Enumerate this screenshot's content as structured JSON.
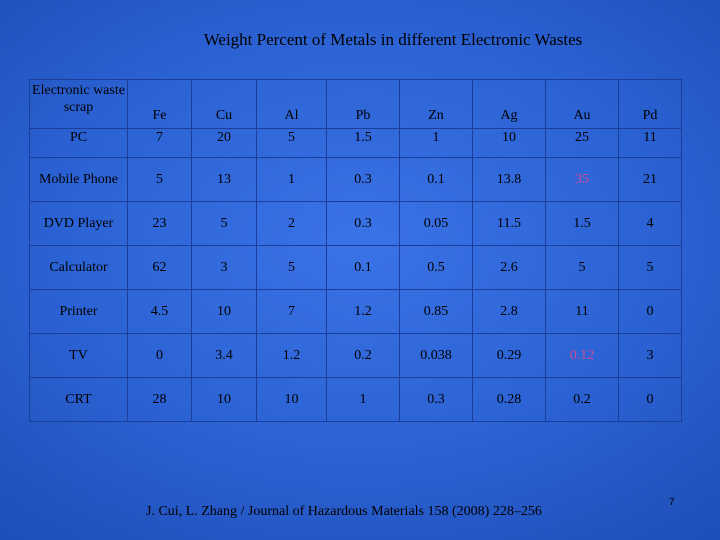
{
  "title": "Weight Percent of  Metals  in different Electronic Wastes",
  "table": {
    "corner_label": "Electronic waste scrap",
    "metals": [
      "Fe",
      "Cu",
      "Al",
      "Pb",
      "Zn",
      "Ag",
      "Au",
      "Pd"
    ],
    "rows": [
      {
        "label": "PC",
        "values": [
          "7",
          "20",
          "5",
          "1.5",
          "1",
          "10",
          "25",
          "11"
        ]
      },
      {
        "label": "Mobile Phone",
        "values": [
          "5",
          "13",
          "1",
          "0.3",
          "0.1",
          "13.8",
          "35",
          "21"
        ]
      },
      {
        "label": "DVD Player",
        "values": [
          "23",
          "5",
          "2",
          "0.3",
          "0.05",
          "11.5",
          "1.5",
          "4"
        ]
      },
      {
        "label": "Calculator",
        "values": [
          "62",
          "3",
          "5",
          "0.1",
          "0.5",
          "2.6",
          "5",
          "5"
        ]
      },
      {
        "label": "Printer",
        "values": [
          "4.5",
          "10",
          "7",
          "1.2",
          "0.85",
          "2.8",
          "11",
          "0"
        ]
      },
      {
        "label": "TV",
        "values": [
          "0",
          "3.4",
          "1.2",
          "0.2",
          "0.038",
          "0.29",
          "0.12",
          "3"
        ]
      },
      {
        "label": "CRT",
        "values": [
          "28",
          "10",
          "10",
          "1",
          "0.3",
          "0.28",
          "0.2",
          "0"
        ]
      }
    ],
    "highlight_color": "#d04a9a"
  },
  "citation": "J. Cui, L. Zhang / Journal of Hazardous Materials 158 (2008) 228–256",
  "page_number": "7"
}
